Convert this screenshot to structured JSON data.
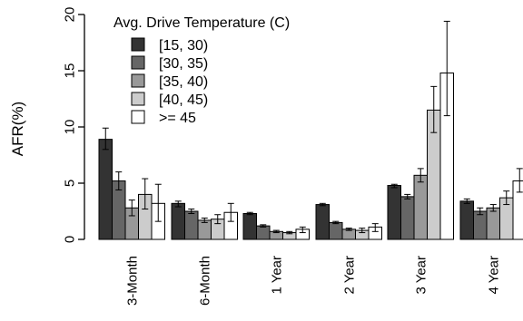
{
  "chart_data": {
    "type": "bar",
    "title": "",
    "xlabel": "",
    "ylabel": "AFR(%)",
    "ylim": [
      0,
      20
    ],
    "yticks": [
      0,
      5,
      10,
      15,
      20
    ],
    "categories": [
      "3-Month",
      "6-Month",
      "1 Year",
      "2 Year",
      "3 Year",
      "4 Year"
    ],
    "legend": {
      "title": "Avg. Drive Temperature (C)",
      "placement": "top-left"
    },
    "series": [
      {
        "name": "[15, 30)",
        "color": "#333333",
        "values": [
          8.9,
          3.2,
          2.3,
          3.1,
          4.8,
          3.4
        ],
        "error_low": [
          8.0,
          2.9,
          2.2,
          3.0,
          4.6,
          3.2
        ],
        "error_high": [
          9.9,
          3.4,
          2.4,
          3.2,
          4.9,
          3.6
        ]
      },
      {
        "name": "[30, 35)",
        "color": "#666666",
        "values": [
          5.2,
          2.5,
          1.2,
          1.5,
          3.8,
          2.5
        ],
        "error_low": [
          4.4,
          2.3,
          1.1,
          1.4,
          3.6,
          2.2
        ],
        "error_high": [
          6.0,
          2.7,
          1.3,
          1.6,
          4.0,
          2.8
        ]
      },
      {
        "name": "[35, 40)",
        "color": "#999999",
        "values": [
          2.8,
          1.7,
          0.7,
          0.9,
          5.7,
          2.8
        ],
        "error_low": [
          2.1,
          1.5,
          0.6,
          0.8,
          5.1,
          2.5
        ],
        "error_high": [
          3.5,
          1.9,
          0.8,
          1.0,
          6.3,
          3.1
        ]
      },
      {
        "name": "[40, 45)",
        "color": "#cccccc",
        "values": [
          4.0,
          1.8,
          0.6,
          0.8,
          11.5,
          3.7
        ],
        "error_low": [
          2.7,
          1.4,
          0.5,
          0.6,
          9.5,
          3.1
        ],
        "error_high": [
          5.4,
          2.2,
          0.7,
          1.0,
          13.6,
          4.3
        ]
      },
      {
        "name": ">= 45",
        "color": "#ffffff",
        "values": [
          3.2,
          2.4,
          0.9,
          1.1,
          14.8,
          5.2
        ],
        "error_low": [
          1.6,
          1.6,
          0.6,
          0.7,
          11.0,
          4.2
        ],
        "error_high": [
          4.9,
          3.2,
          1.1,
          1.4,
          19.4,
          6.3
        ]
      }
    ]
  }
}
